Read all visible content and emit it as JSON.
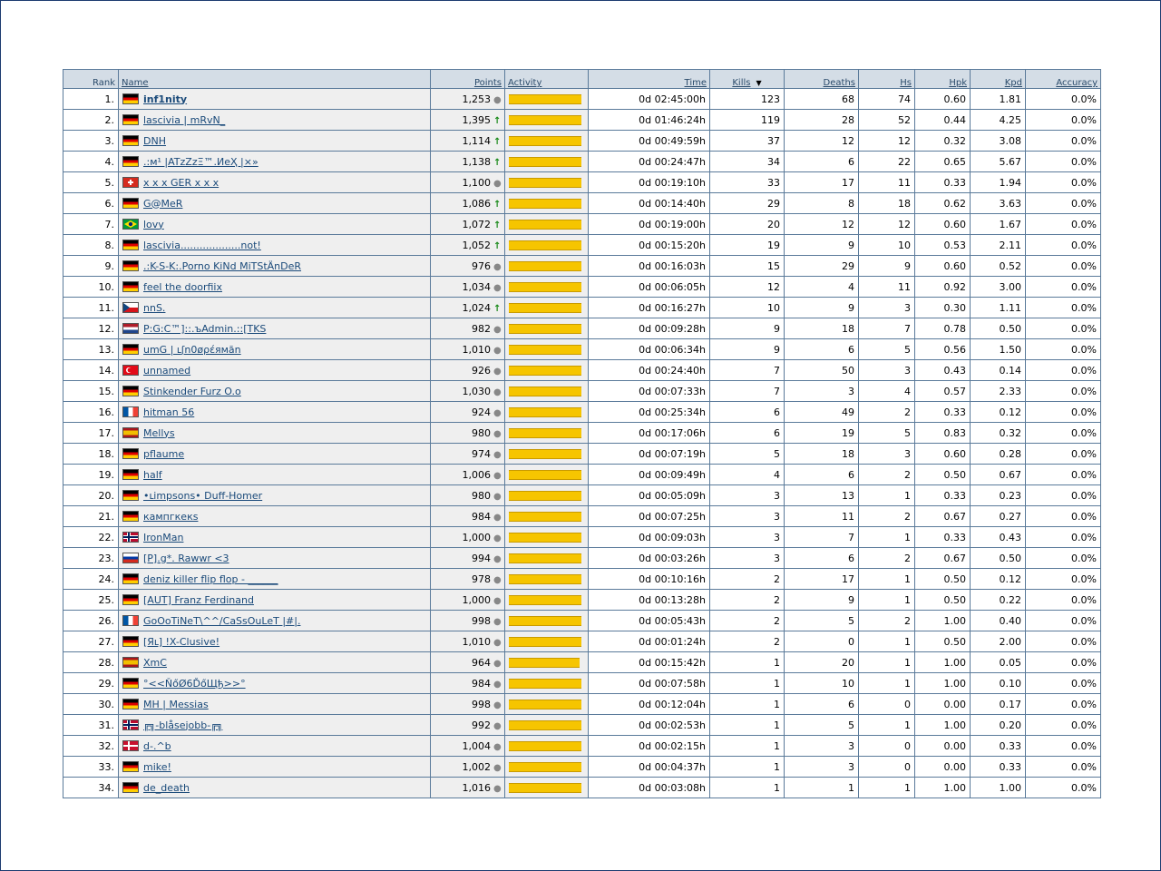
{
  "colors": {
    "bar": "#f6c500",
    "header_bg": "#d4dde6",
    "border": "#5a7a9a",
    "link": "#1a4a7a",
    "trend_up": "#1a8a1a"
  },
  "headers": {
    "rank": "Rank",
    "name": "Name",
    "points": "Points",
    "activity": "Activity",
    "time": "Time",
    "kills": "Kills",
    "deaths": "Deaths",
    "hs": "Hs",
    "hpk": "Hpk",
    "kpd": "Kpd",
    "accuracy": "Accuracy"
  },
  "sort": {
    "column": "kills",
    "direction": "desc",
    "icon": "sort-down-icon"
  },
  "players": [
    {
      "rank": "1.",
      "flag": "de",
      "name": "inf1nity",
      "bold": true,
      "points": "1,253",
      "trend": "same",
      "activity": 1.0,
      "time": "0d 02:45:00h",
      "kills": "123",
      "deaths": "68",
      "hs": "74",
      "hpk": "0.60",
      "kpd": "1.81",
      "accuracy": "0.0%"
    },
    {
      "rank": "2.",
      "flag": "de",
      "name": "lascivia | mRvN_",
      "points": "1,395",
      "trend": "up",
      "activity": 1.0,
      "time": "0d 01:46:24h",
      "kills": "119",
      "deaths": "28",
      "hs": "52",
      "hpk": "0.44",
      "kpd": "4.25",
      "accuracy": "0.0%"
    },
    {
      "rank": "3.",
      "flag": "de",
      "name": "DNH",
      "points": "1,114",
      "trend": "up",
      "activity": 1.0,
      "time": "0d 00:49:59h",
      "kills": "37",
      "deaths": "12",
      "hs": "12",
      "hpk": "0.32",
      "kpd": "3.08",
      "accuracy": "0.0%"
    },
    {
      "rank": "4.",
      "flag": "de",
      "name": ".:м¹ |ATzZzΞ™.ИеҲ |×»",
      "points": "1,138",
      "trend": "up",
      "activity": 1.0,
      "time": "0d 00:24:47h",
      "kills": "34",
      "deaths": "6",
      "hs": "22",
      "hpk": "0.65",
      "kpd": "5.67",
      "accuracy": "0.0%"
    },
    {
      "rank": "5.",
      "flag": "ch",
      "name": "x x x GER x x x",
      "points": "1,100",
      "trend": "same",
      "activity": 1.0,
      "time": "0d 00:19:10h",
      "kills": "33",
      "deaths": "17",
      "hs": "11",
      "hpk": "0.33",
      "kpd": "1.94",
      "accuracy": "0.0%"
    },
    {
      "rank": "6.",
      "flag": "de",
      "name": "G@MeR",
      "points": "1,086",
      "trend": "up",
      "activity": 1.0,
      "time": "0d 00:14:40h",
      "kills": "29",
      "deaths": "8",
      "hs": "18",
      "hpk": "0.62",
      "kpd": "3.63",
      "accuracy": "0.0%"
    },
    {
      "rank": "7.",
      "flag": "br",
      "name": "lovy",
      "points": "1,072",
      "trend": "up",
      "activity": 1.0,
      "time": "0d 00:19:00h",
      "kills": "20",
      "deaths": "12",
      "hs": "12",
      "hpk": "0.60",
      "kpd": "1.67",
      "accuracy": "0.0%"
    },
    {
      "rank": "8.",
      "flag": "de",
      "name": "lascivia...................not!",
      "points": "1,052",
      "trend": "up",
      "activity": 1.0,
      "time": "0d 00:15:20h",
      "kills": "19",
      "deaths": "9",
      "hs": "10",
      "hpk": "0.53",
      "kpd": "2.11",
      "accuracy": "0.0%"
    },
    {
      "rank": "9.",
      "flag": "de",
      "name": ".:K-S-K:.Porno KiNd MiTStÄnDeR",
      "points": "976",
      "trend": "same",
      "activity": 1.0,
      "time": "0d 00:16:03h",
      "kills": "15",
      "deaths": "29",
      "hs": "9",
      "hpk": "0.60",
      "kpd": "0.52",
      "accuracy": "0.0%"
    },
    {
      "rank": "10.",
      "flag": "de",
      "name": "feel the doorfiix",
      "points": "1,034",
      "trend": "same",
      "activity": 1.0,
      "time": "0d 00:06:05h",
      "kills": "12",
      "deaths": "4",
      "hs": "11",
      "hpk": "0.92",
      "kpd": "3.00",
      "accuracy": "0.0%"
    },
    {
      "rank": "11.",
      "flag": "cz",
      "name": "nnS.",
      "points": "1,024",
      "trend": "up",
      "activity": 1.0,
      "time": "0d 00:16:27h",
      "kills": "10",
      "deaths": "9",
      "hs": "3",
      "hpk": "0.30",
      "kpd": "1.11",
      "accuracy": "0.0%"
    },
    {
      "rank": "12.",
      "flag": "nl",
      "name": "P:G:C™]::.ъAdmin.::[TKS",
      "points": "982",
      "trend": "same",
      "activity": 1.0,
      "time": "0d 00:09:28h",
      "kills": "9",
      "deaths": "18",
      "hs": "7",
      "hpk": "0.78",
      "kpd": "0.50",
      "accuracy": "0.0%"
    },
    {
      "rank": "13.",
      "flag": "de",
      "name": "umG | ւʃn0øρέямăn",
      "points": "1,010",
      "trend": "same",
      "activity": 1.0,
      "time": "0d 00:06:34h",
      "kills": "9",
      "deaths": "6",
      "hs": "5",
      "hpk": "0.56",
      "kpd": "1.50",
      "accuracy": "0.0%"
    },
    {
      "rank": "14.",
      "flag": "tr",
      "name": "unnamed",
      "points": "926",
      "trend": "same",
      "activity": 1.0,
      "time": "0d 00:24:40h",
      "kills": "7",
      "deaths": "50",
      "hs": "3",
      "hpk": "0.43",
      "kpd": "0.14",
      "accuracy": "0.0%"
    },
    {
      "rank": "15.",
      "flag": "de",
      "name": "Stinkender Furz O.o",
      "points": "1,030",
      "trend": "same",
      "activity": 1.0,
      "time": "0d 00:07:33h",
      "kills": "7",
      "deaths": "3",
      "hs": "4",
      "hpk": "0.57",
      "kpd": "2.33",
      "accuracy": "0.0%"
    },
    {
      "rank": "16.",
      "flag": "fr",
      "name": "hitman 56",
      "points": "924",
      "trend": "same",
      "activity": 1.0,
      "time": "0d 00:25:34h",
      "kills": "6",
      "deaths": "49",
      "hs": "2",
      "hpk": "0.33",
      "kpd": "0.12",
      "accuracy": "0.0%"
    },
    {
      "rank": "17.",
      "flag": "es",
      "name": "Mellys",
      "points": "980",
      "trend": "same",
      "activity": 1.0,
      "time": "0d 00:17:06h",
      "kills": "6",
      "deaths": "19",
      "hs": "5",
      "hpk": "0.83",
      "kpd": "0.32",
      "accuracy": "0.0%"
    },
    {
      "rank": "18.",
      "flag": "de",
      "name": "pflaume",
      "points": "974",
      "trend": "same",
      "activity": 1.0,
      "time": "0d 00:07:19h",
      "kills": "5",
      "deaths": "18",
      "hs": "3",
      "hpk": "0.60",
      "kpd": "0.28",
      "accuracy": "0.0%"
    },
    {
      "rank": "19.",
      "flag": "de",
      "name": "half",
      "points": "1,006",
      "trend": "same",
      "activity": 1.0,
      "time": "0d 00:09:49h",
      "kills": "4",
      "deaths": "6",
      "hs": "2",
      "hpk": "0.50",
      "kpd": "0.67",
      "accuracy": "0.0%"
    },
    {
      "rank": "20.",
      "flag": "de",
      "name": "•ւimpsons• Duff-Homer",
      "points": "980",
      "trend": "same",
      "activity": 1.0,
      "time": "0d 00:05:09h",
      "kills": "3",
      "deaths": "13",
      "hs": "1",
      "hpk": "0.33",
      "kpd": "0.23",
      "accuracy": "0.0%"
    },
    {
      "rank": "21.",
      "flag": "de",
      "name": "кампгкекs",
      "points": "984",
      "trend": "same",
      "activity": 1.0,
      "time": "0d 00:07:25h",
      "kills": "3",
      "deaths": "11",
      "hs": "2",
      "hpk": "0.67",
      "kpd": "0.27",
      "accuracy": "0.0%"
    },
    {
      "rank": "22.",
      "flag": "no",
      "name": "IronMan",
      "points": "1,000",
      "trend": "same",
      "activity": 1.0,
      "time": "0d 00:09:03h",
      "kills": "3",
      "deaths": "7",
      "hs": "1",
      "hpk": "0.33",
      "kpd": "0.43",
      "accuracy": "0.0%"
    },
    {
      "rank": "23.",
      "flag": "ru",
      "name": "[P].g*. Rawwr <3",
      "points": "994",
      "trend": "same",
      "activity": 1.0,
      "time": "0d 00:03:26h",
      "kills": "3",
      "deaths": "6",
      "hs": "2",
      "hpk": "0.67",
      "kpd": "0.50",
      "accuracy": "0.0%"
    },
    {
      "rank": "24.",
      "flag": "de",
      "name": "deniz killer flip flop - ______",
      "points": "978",
      "trend": "same",
      "activity": 1.0,
      "time": "0d 00:10:16h",
      "kills": "2",
      "deaths": "17",
      "hs": "1",
      "hpk": "0.50",
      "kpd": "0.12",
      "accuracy": "0.0%"
    },
    {
      "rank": "25.",
      "flag": "de",
      "name": "[AUT] Franz Ferdinand",
      "points": "1,000",
      "trend": "same",
      "activity": 1.0,
      "time": "0d 00:13:28h",
      "kills": "2",
      "deaths": "9",
      "hs": "1",
      "hpk": "0.50",
      "kpd": "0.22",
      "accuracy": "0.0%"
    },
    {
      "rank": "26.",
      "flag": "fr",
      "name": "GoOoTiNeT\\^^/CaSsOuLeT |#|.",
      "points": "998",
      "trend": "same",
      "activity": 1.0,
      "time": "0d 00:05:43h",
      "kills": "2",
      "deaths": "5",
      "hs": "2",
      "hpk": "1.00",
      "kpd": "0.40",
      "accuracy": "0.0%"
    },
    {
      "rank": "27.",
      "flag": "de",
      "name": "[Яւ] !X-Clusive!",
      "points": "1,010",
      "trend": "same",
      "activity": 1.0,
      "time": "0d 00:01:24h",
      "kills": "2",
      "deaths": "0",
      "hs": "1",
      "hpk": "0.50",
      "kpd": "2.00",
      "accuracy": "0.0%"
    },
    {
      "rank": "28.",
      "flag": "es",
      "name": "XmC",
      "points": "964",
      "trend": "same",
      "activity": 0.98,
      "time": "0d 00:15:42h",
      "kills": "1",
      "deaths": "20",
      "hs": "1",
      "hpk": "1.00",
      "kpd": "0.05",
      "accuracy": "0.0%"
    },
    {
      "rank": "29.",
      "flag": "de",
      "name": "°<<ŇőØ6ĎőЩђ>>°",
      "points": "984",
      "trend": "same",
      "activity": 1.0,
      "time": "0d 00:07:58h",
      "kills": "1",
      "deaths": "10",
      "hs": "1",
      "hpk": "1.00",
      "kpd": "0.10",
      "accuracy": "0.0%"
    },
    {
      "rank": "30.",
      "flag": "de",
      "name": "MH | Messias",
      "points": "998",
      "trend": "same",
      "activity": 1.0,
      "time": "0d 00:12:04h",
      "kills": "1",
      "deaths": "6",
      "hs": "0",
      "hpk": "0.00",
      "kpd": "0.17",
      "accuracy": "0.0%"
    },
    {
      "rank": "31.",
      "flag": "no",
      "name": "╔╗-blåsejobb-╔╗",
      "points": "992",
      "trend": "same",
      "activity": 1.0,
      "time": "0d 00:02:53h",
      "kills": "1",
      "deaths": "5",
      "hs": "1",
      "hpk": "1.00",
      "kpd": "0.20",
      "accuracy": "0.0%"
    },
    {
      "rank": "32.",
      "flag": "dk",
      "name": "d-.^b",
      "points": "1,004",
      "trend": "same",
      "activity": 1.0,
      "time": "0d 00:02:15h",
      "kills": "1",
      "deaths": "3",
      "hs": "0",
      "hpk": "0.00",
      "kpd": "0.33",
      "accuracy": "0.0%"
    },
    {
      "rank": "33.",
      "flag": "de",
      "name": "mike!",
      "points": "1,002",
      "trend": "same",
      "activity": 1.0,
      "time": "0d 00:04:37h",
      "kills": "1",
      "deaths": "3",
      "hs": "0",
      "hpk": "0.00",
      "kpd": "0.33",
      "accuracy": "0.0%"
    },
    {
      "rank": "34.",
      "flag": "de",
      "name": "de_death",
      "points": "1,016",
      "trend": "same",
      "activity": 1.0,
      "time": "0d 00:03:08h",
      "kills": "1",
      "deaths": "1",
      "hs": "1",
      "hpk": "1.00",
      "kpd": "1.00",
      "accuracy": "0.0%"
    }
  ]
}
